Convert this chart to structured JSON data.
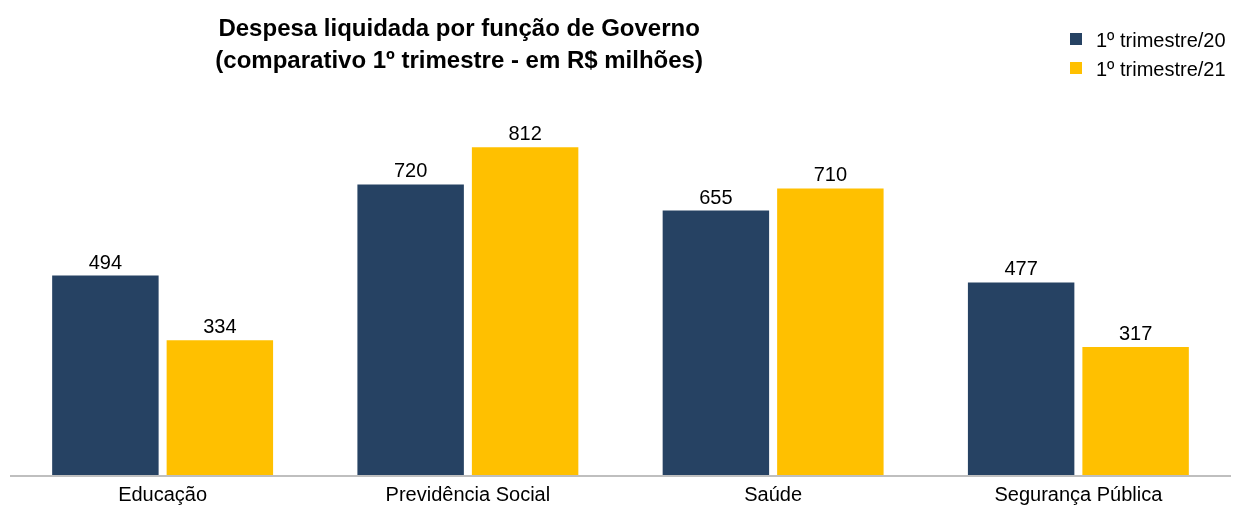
{
  "chart_data": {
    "type": "bar",
    "title": "Despesa liquidada por função de Governo\n(comparativo 1º trimestre - em R$ milhões)",
    "categories": [
      "Educação",
      "Previdência Social",
      "Saúde",
      "Segurança Pública"
    ],
    "series": [
      {
        "name": "1º trimestre/20",
        "color": "#264263",
        "values": [
          494,
          720,
          655,
          477
        ]
      },
      {
        "name": "1º trimestre/21",
        "color": "#ffc000",
        "values": [
          334,
          812,
          710,
          317
        ]
      }
    ],
    "data_labels": true,
    "legend": "top right",
    "grid": false
  }
}
